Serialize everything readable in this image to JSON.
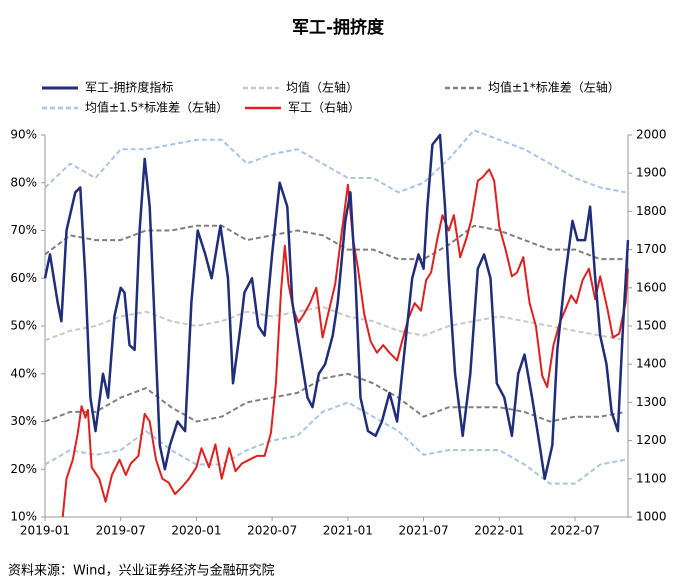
{
  "chart_data": {
    "type": "line",
    "title": "军工-拥挤度",
    "source": "资料来源：Wind，兴业证券经济与金融研究院",
    "xlim": [
      0,
      46.2
    ],
    "ylim": [
      10,
      90
    ],
    "y2lim": [
      1000,
      2000
    ],
    "xticks": [
      {
        "value": 0,
        "label": "2019-01"
      },
      {
        "value": 6,
        "label": "2019-07"
      },
      {
        "value": 12,
        "label": "2020-01"
      },
      {
        "value": 18,
        "label": "2020-07"
      },
      {
        "value": 24,
        "label": "2021-01"
      },
      {
        "value": 30,
        "label": "2021-07"
      },
      {
        "value": 36,
        "label": "2022-01"
      },
      {
        "value": 42,
        "label": "2022-07"
      }
    ],
    "yticks": [
      {
        "value": 10,
        "label": "10%"
      },
      {
        "value": 20,
        "label": "20%"
      },
      {
        "value": 30,
        "label": "30%"
      },
      {
        "value": 40,
        "label": "40%"
      },
      {
        "value": 50,
        "label": "50%"
      },
      {
        "value": 60,
        "label": "60%"
      },
      {
        "value": 70,
        "label": "70%"
      },
      {
        "value": 80,
        "label": "80%"
      },
      {
        "value": 90,
        "label": "90%"
      }
    ],
    "y2ticks": [
      1000,
      1100,
      1200,
      1300,
      1400,
      1500,
      1600,
      1700,
      1800,
      1900,
      2000
    ],
    "series": [
      {
        "name": "军工-拥挤度指标",
        "color": "#1f2d7a",
        "dash": false,
        "width": 2.5,
        "x": [
          0,
          0.4,
          1,
          1.3,
          1.7,
          2.4,
          2.8,
          3.2,
          3.6,
          4,
          4.6,
          5,
          5.5,
          6,
          6.3,
          6.7,
          7.1,
          7.5,
          7.9,
          8.3,
          8.7,
          9.1,
          9.5,
          9.9,
          10.5,
          11.1,
          11.6,
          12.1,
          12.7,
          13.2,
          13.9,
          14.5,
          14.9,
          15.5,
          15.8,
          16.4,
          16.9,
          17.4,
          18,
          18.6,
          19.2,
          19.6,
          20.2,
          20.8,
          21.2,
          21.7,
          22.2,
          22.8,
          23.2,
          23.8,
          24.2,
          24.6,
          25,
          25.6,
          26.2,
          26.7,
          27.3,
          27.9,
          28.5,
          29.1,
          29.6,
          30,
          30.3,
          30.7,
          31.3,
          31.7,
          32,
          32.5,
          33.1,
          33.7,
          34.3,
          34.8,
          35.3,
          35.8,
          36.4,
          37,
          37.5,
          38,
          38.6,
          39.2,
          39.6,
          40.2,
          40.6,
          41.2,
          41.8,
          42.2,
          42.8,
          43.2,
          43.6,
          44,
          44.5,
          44.9,
          45.4,
          45.8,
          46.2
        ],
        "values": [
          60,
          65,
          55,
          51,
          70,
          78,
          79,
          60,
          35,
          28,
          40,
          35,
          52,
          58,
          57,
          46,
          45,
          70,
          85,
          75,
          50,
          25,
          20,
          25,
          30,
          28,
          55,
          70,
          65,
          60,
          71,
          60,
          38,
          50,
          57,
          60,
          50,
          48,
          65,
          80,
          75,
          55,
          45,
          35,
          33,
          40,
          42,
          48,
          55,
          72,
          78,
          60,
          35,
          28,
          27,
          30,
          36,
          30,
          45,
          60,
          65,
          62,
          75,
          88,
          90,
          75,
          60,
          40,
          27,
          40,
          62,
          65,
          60,
          38,
          35,
          27,
          40,
          44,
          35,
          25,
          18,
          25,
          45,
          60,
          72,
          68,
          68,
          75,
          60,
          48,
          42,
          32,
          28,
          50,
          68
        ]
      },
      {
        "name": "均值（左轴）",
        "color": "#c8c8c8",
        "dash": true,
        "width": 2,
        "x": [
          0,
          2,
          4,
          6,
          8,
          10,
          12,
          14,
          16,
          18,
          20,
          22,
          24,
          26,
          28,
          30,
          32,
          34,
          36,
          38,
          40,
          42,
          44,
          46
        ],
        "values": [
          47,
          49,
          50,
          52,
          53,
          51,
          50,
          51,
          53,
          52,
          53,
          54,
          52,
          51,
          49,
          48,
          50,
          51,
          52,
          51,
          50,
          49,
          48,
          47
        ]
      },
      {
        "name": "均值±1*标准差（左轴）",
        "color": "#7f7f7f",
        "dash": true,
        "width": 2,
        "x": [
          0,
          2,
          4,
          6,
          8,
          10,
          12,
          14,
          16,
          18,
          20,
          22,
          24,
          26,
          28,
          30,
          32,
          34,
          36,
          38,
          40,
          42,
          44,
          46
        ],
        "upper": [
          65,
          69,
          68,
          68,
          70,
          70,
          71,
          71,
          68,
          69,
          70,
          69,
          66,
          66,
          64,
          64,
          67,
          71,
          70,
          68,
          66,
          66,
          64,
          64
        ],
        "lower": [
          30,
          32,
          32,
          35,
          37,
          33,
          30,
          31,
          34,
          35,
          36,
          39,
          40,
          38,
          35,
          31,
          33,
          33,
          33,
          32,
          30,
          31,
          31,
          32
        ]
      },
      {
        "name": "均值±1.5*标准差（左轴）",
        "color": "#a9c4e4",
        "dash": true,
        "width": 2,
        "x": [
          0,
          2,
          4,
          6,
          8,
          10,
          12,
          14,
          16,
          18,
          20,
          22,
          24,
          26,
          28,
          30,
          32,
          34,
          36,
          38,
          40,
          42,
          44,
          46
        ],
        "upper": [
          79,
          84,
          81,
          87,
          87,
          88,
          89,
          89,
          84,
          86,
          87,
          84,
          81,
          81,
          78,
          80,
          85,
          91,
          89,
          87,
          84,
          81,
          79,
          78
        ],
        "lower": [
          21,
          24,
          23,
          24,
          28,
          24,
          21,
          21,
          24,
          26,
          27,
          32,
          34,
          31,
          28,
          23,
          24,
          24,
          24,
          21,
          17,
          17,
          21,
          22
        ]
      },
      {
        "name": "军工（右轴）",
        "color": "#e02020",
        "dash": false,
        "width": 2,
        "axis": "y2",
        "x": [
          1.4,
          1.7,
          2.2,
          2.6,
          2.9,
          3.2,
          3.4,
          3.7,
          4.3,
          4.8,
          5.3,
          5.9,
          6.4,
          6.8,
          7.4,
          7.9,
          8.3,
          8.8,
          9.3,
          9.8,
          10.3,
          10.9,
          11.4,
          12,
          12.4,
          13,
          13.5,
          14,
          14.6,
          15.1,
          15.6,
          16.2,
          16.8,
          17.4,
          17.9,
          18.3,
          18.7,
          19,
          19.3,
          19.7,
          20.1,
          20.5,
          21,
          21.5,
          22,
          22.5,
          23,
          23.5,
          24,
          24.4,
          24.8,
          25.3,
          25.8,
          26.3,
          26.8,
          27.3,
          27.9,
          28.3,
          28.8,
          29.3,
          29.8,
          30.2,
          30.6,
          31.1,
          31.5,
          32,
          32.4,
          32.9,
          33.4,
          33.8,
          34.3,
          34.7,
          35.2,
          35.6,
          36,
          36.5,
          37,
          37.4,
          37.9,
          38.4,
          38.9,
          39.4,
          39.8,
          40.3,
          40.8,
          41.2,
          41.7,
          42.1,
          42.6,
          43.1,
          43.6,
          44,
          44.6,
          45,
          45.5,
          46,
          46.2
        ],
        "values": [
          1000,
          1100,
          1150,
          1220,
          1290,
          1260,
          1280,
          1130,
          1100,
          1040,
          1110,
          1150,
          1110,
          1140,
          1160,
          1270,
          1250,
          1150,
          1100,
          1090,
          1060,
          1080,
          1100,
          1130,
          1180,
          1130,
          1190,
          1100,
          1180,
          1120,
          1140,
          1150,
          1160,
          1160,
          1220,
          1350,
          1590,
          1710,
          1610,
          1540,
          1510,
          1530,
          1560,
          1600,
          1470,
          1540,
          1610,
          1740,
          1870,
          1730,
          1650,
          1530,
          1460,
          1430,
          1450,
          1430,
          1410,
          1460,
          1520,
          1560,
          1540,
          1620,
          1640,
          1730,
          1790,
          1750,
          1790,
          1680,
          1730,
          1780,
          1880,
          1890,
          1910,
          1880,
          1760,
          1700,
          1630,
          1640,
          1680,
          1560,
          1500,
          1370,
          1340,
          1450,
          1510,
          1540,
          1580,
          1560,
          1620,
          1650,
          1570,
          1630,
          1540,
          1470,
          1480,
          1560,
          1650
        ]
      }
    ]
  }
}
